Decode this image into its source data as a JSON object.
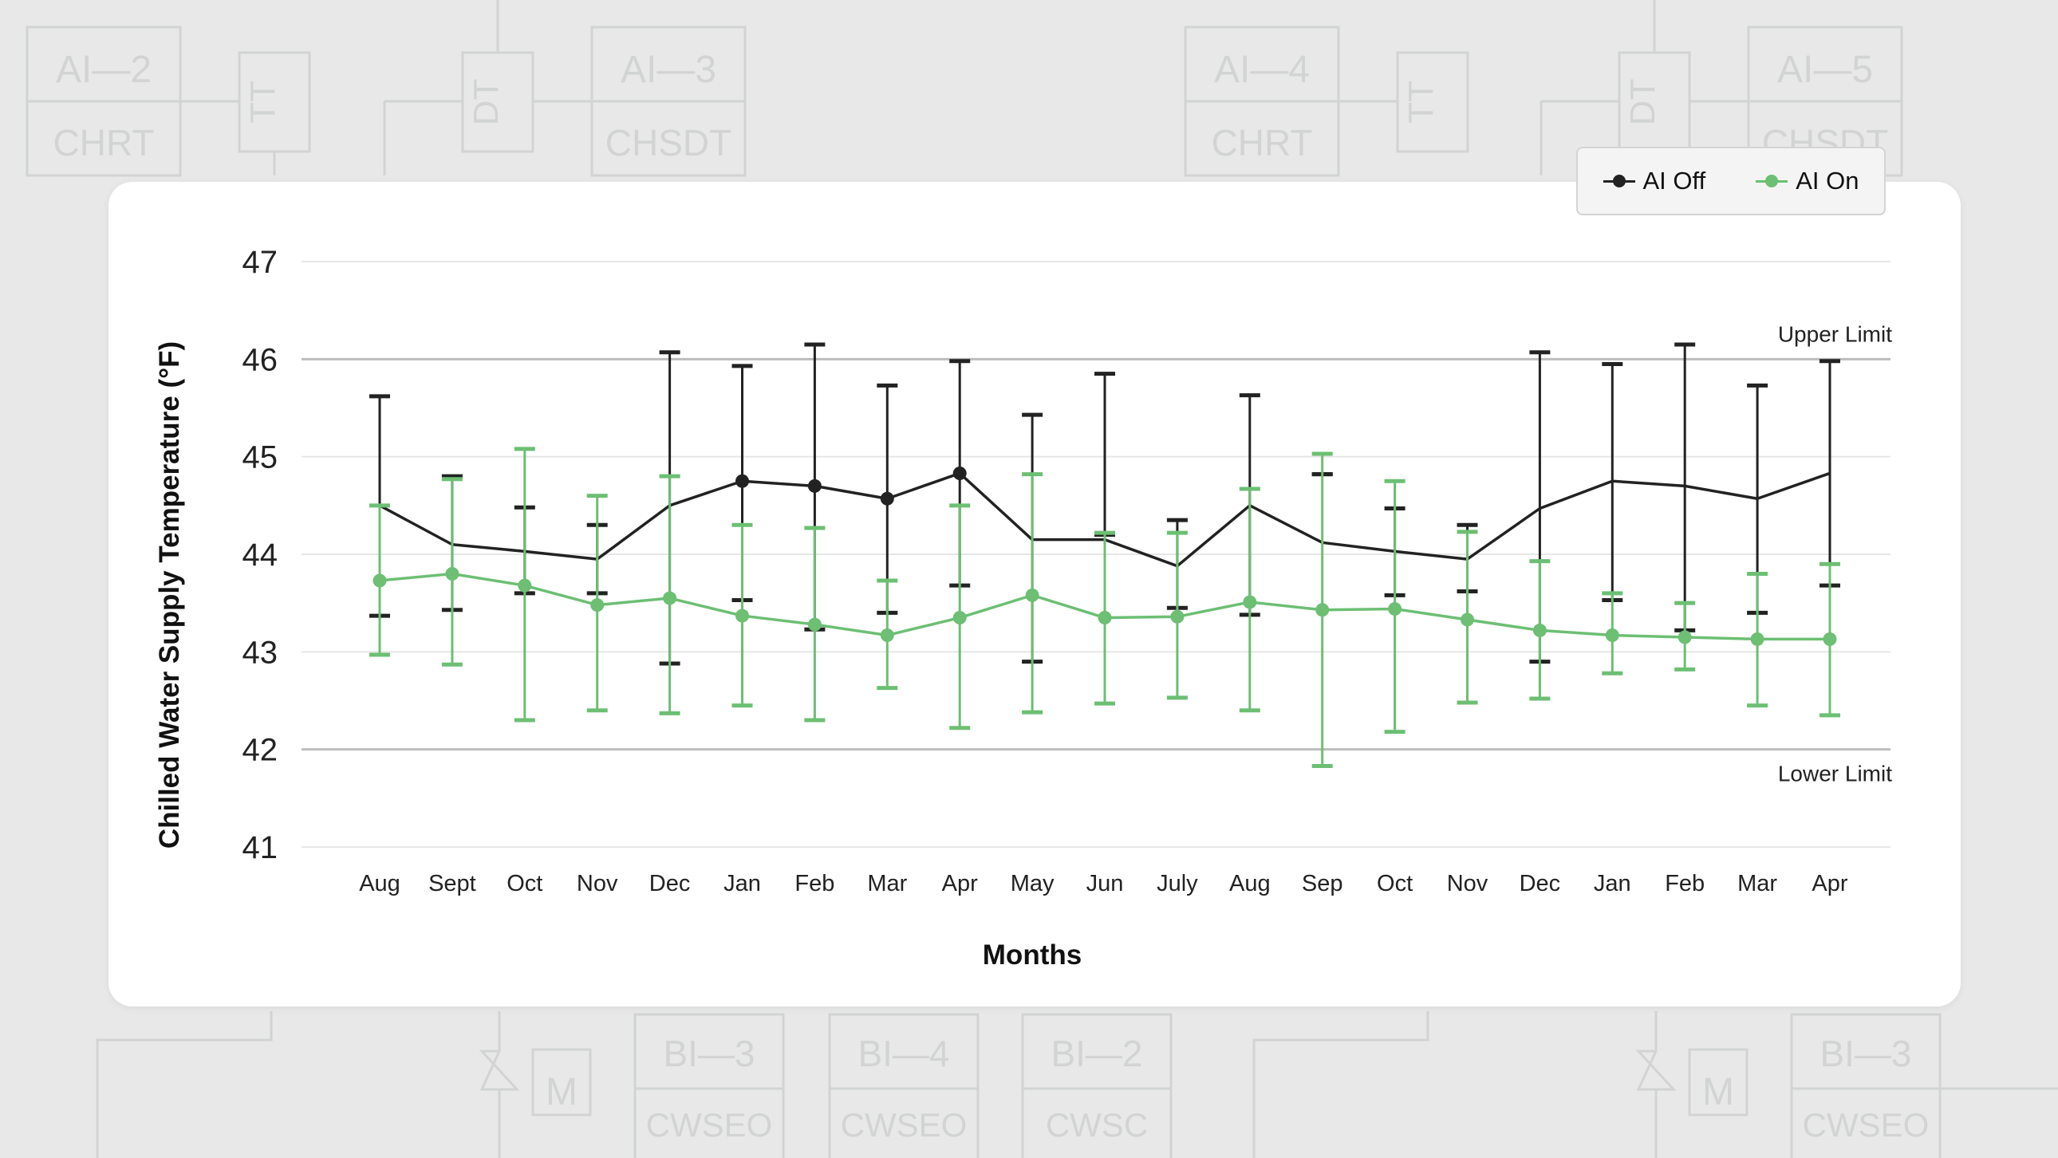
{
  "background_labels": {
    "top": [
      {
        "a": "AI—2",
        "b": "CHRT"
      },
      {
        "a": "TT"
      },
      {
        "a": "DT"
      },
      {
        "a": "AI—3",
        "b": "CHSDT"
      },
      {
        "a": "AI—4",
        "b": "CHRT"
      },
      {
        "a": "TT"
      },
      {
        "a": "DT"
      },
      {
        "a": "AI—5",
        "b": "CHSDT"
      }
    ],
    "bottom": [
      {
        "a": "M"
      },
      {
        "a": "BI—3",
        "b": "CWSEO"
      },
      {
        "a": "BI—4",
        "b": "CWSEO"
      },
      {
        "a": "BI—2",
        "b": "CWSC"
      },
      {
        "a": "M"
      },
      {
        "a": "BI—3",
        "b": "CWSEO"
      }
    ]
  },
  "legend": {
    "off_label": "AI Off",
    "on_label": "AI On"
  },
  "chart_data": {
    "type": "line",
    "title": "",
    "xlabel": "Months",
    "ylabel": "Chilled Water Supply Temperature (°F)",
    "ylim": [
      41,
      47
    ],
    "yticks": [
      41,
      42,
      43,
      44,
      45,
      46,
      47
    ],
    "categories": [
      "Aug",
      "Sept",
      "Oct",
      "Nov",
      "Dec",
      "Jan",
      "Feb",
      "Mar",
      "Apr",
      "May",
      "Jun",
      "July",
      "Aug",
      "Sep",
      "Oct",
      "Nov",
      "Dec",
      "Jan",
      "Feb",
      "Mar",
      "Apr"
    ],
    "reference_lines": [
      {
        "value": 46,
        "label": "Upper Limit"
      },
      {
        "value": 42,
        "label": "Lower Limit"
      }
    ],
    "series": [
      {
        "name": "AI Off",
        "color": "#222222",
        "values": [
          44.5,
          44.1,
          44.03,
          43.95,
          44.5,
          44.75,
          44.7,
          44.57,
          44.83,
          44.15,
          44.15,
          43.88,
          44.5,
          44.12,
          44.03,
          43.95,
          44.47,
          44.75,
          44.7,
          44.57,
          44.83
        ],
        "error_low": [
          43.37,
          43.43,
          43.6,
          43.6,
          42.88,
          43.53,
          43.23,
          43.4,
          43.68,
          42.9,
          44.2,
          43.45,
          43.38,
          44.82,
          43.58,
          43.62,
          42.9,
          43.53,
          43.22,
          43.4,
          43.68
        ],
        "error_high": [
          45.62,
          44.8,
          44.48,
          44.3,
          46.07,
          45.93,
          46.15,
          45.73,
          45.98,
          45.43,
          45.85,
          44.35,
          45.63,
          44.82,
          44.47,
          44.3,
          46.07,
          45.95,
          46.15,
          45.73,
          45.98
        ],
        "markers": [
          false,
          false,
          false,
          false,
          false,
          true,
          true,
          true,
          true,
          false,
          false,
          false,
          false,
          false,
          false,
          false,
          false,
          false,
          false,
          false,
          false
        ]
      },
      {
        "name": "AI On",
        "color": "#6cbf73",
        "values": [
          43.73,
          43.8,
          43.68,
          43.48,
          43.55,
          43.37,
          43.28,
          43.17,
          43.35,
          43.58,
          43.35,
          43.36,
          43.51,
          43.43,
          43.44,
          43.33,
          43.22,
          43.17,
          43.15,
          43.13,
          43.13
        ],
        "error_low": [
          42.97,
          42.87,
          42.3,
          42.4,
          42.37,
          42.45,
          42.3,
          42.63,
          42.22,
          42.38,
          42.47,
          42.53,
          42.4,
          41.83,
          42.18,
          42.48,
          42.52,
          42.78,
          42.82,
          42.45,
          42.35
        ],
        "error_high": [
          44.5,
          44.77,
          45.08,
          44.6,
          44.8,
          44.3,
          44.27,
          43.73,
          44.5,
          44.82,
          44.22,
          44.22,
          44.67,
          45.03,
          44.75,
          44.23,
          43.93,
          43.6,
          43.5,
          43.8,
          43.9
        ],
        "markers": [
          true,
          true,
          true,
          true,
          true,
          true,
          true,
          true,
          true,
          true,
          true,
          true,
          true,
          true,
          true,
          true,
          true,
          true,
          true,
          true,
          true
        ]
      }
    ]
  }
}
